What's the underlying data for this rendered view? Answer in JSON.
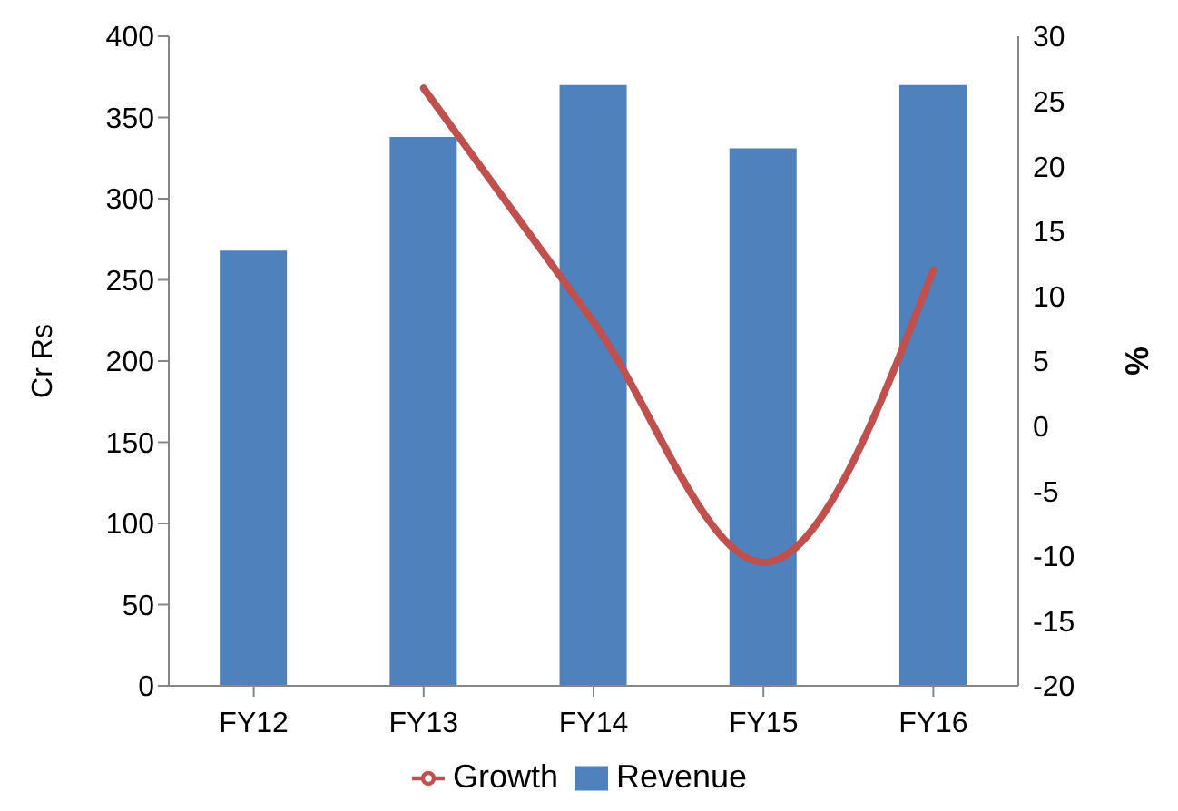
{
  "chart_data": {
    "type": "bar",
    "categories": [
      "FY12",
      "FY13",
      "FY14",
      "FY15",
      "FY16"
    ],
    "series": [
      {
        "name": "Revenue",
        "color": "#4f81bd",
        "values": [
          268,
          338,
          370,
          331,
          370
        ]
      },
      {
        "name": "Growth",
        "type": "line",
        "axis": "y2",
        "color": "#c0504d",
        "values": [
          null,
          26,
          8,
          -10.5,
          12
        ]
      }
    ],
    "ylabel": "Cr Rs",
    "y2label": "%",
    "ylim": [
      0,
      400
    ],
    "yticks": [
      0,
      50,
      100,
      150,
      200,
      250,
      300,
      350,
      400
    ],
    "y2lim": [
      -20,
      30
    ],
    "y2ticks": [
      -20,
      -15,
      -10,
      -5,
      0,
      5,
      10,
      15,
      20,
      25,
      30
    ],
    "legend": "bottom",
    "grid": false,
    "marker": "none",
    "line_style": "solid"
  }
}
